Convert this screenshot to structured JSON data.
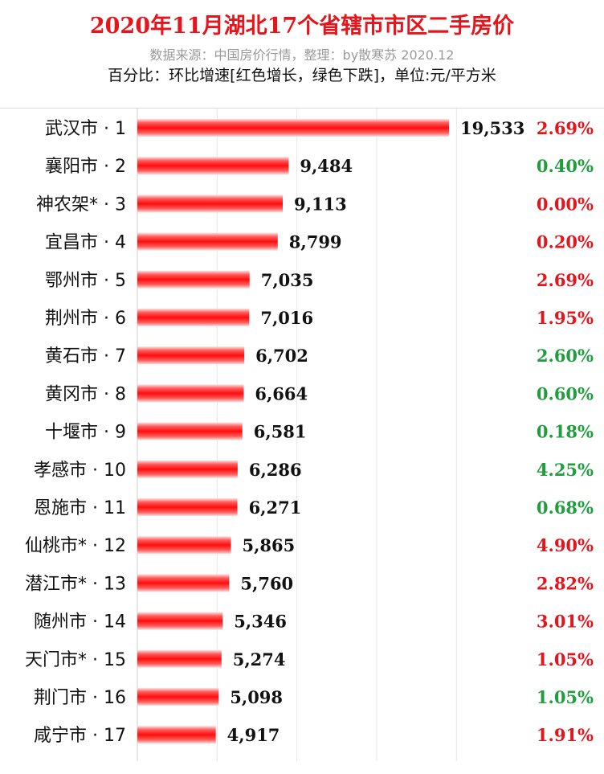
{
  "chart_data": {
    "type": "bar",
    "orientation": "horizontal",
    "title": "2020年11月湖北17个省辖市市区二手房价",
    "subtitle": "数据来源：中国房价行情，整理：by散寒苏 2020.12",
    "note": "百分比：环比增速[红色增长，绿色下跌]，单位:元/平方米",
    "categories": [
      "武汉市 · 1",
      "襄阳市 · 2",
      "神农架* · 3",
      "宜昌市 · 4",
      "鄂州市 · 5",
      "荆州市 · 6",
      "黄石市 · 7",
      "黄冈市 · 8",
      "十堰市 · 9",
      "孝感市 · 10",
      "恩施市 · 11",
      "仙桃市* · 12",
      "潜江市* · 13",
      "随州市 · 14",
      "天门市* · 15",
      "荆门市 · 16",
      "咸宁市 · 17"
    ],
    "values": [
      19533,
      9484,
      9113,
      8799,
      7035,
      7016,
      6702,
      6664,
      6581,
      6286,
      6271,
      5865,
      5760,
      5346,
      5274,
      5098,
      4917
    ],
    "value_labels": [
      "19,533",
      "9,484",
      "9,113",
      "8,799",
      "7,035",
      "7,016",
      "6,702",
      "6,664",
      "6,581",
      "6,286",
      "6,271",
      "5,865",
      "5,760",
      "5,346",
      "5,274",
      "5,098",
      "4,917"
    ],
    "mom_change": [
      "2.69%",
      "0.40%",
      "0.00%",
      "0.20%",
      "2.69%",
      "1.95%",
      "2.60%",
      "0.60%",
      "0.18%",
      "4.25%",
      "0.68%",
      "4.90%",
      "2.82%",
      "3.01%",
      "1.05%",
      "1.05%",
      "1.91%"
    ],
    "mom_direction": [
      "up",
      "down",
      "up",
      "up",
      "up",
      "up",
      "down",
      "down",
      "down",
      "down",
      "down",
      "up",
      "up",
      "up",
      "up",
      "down",
      "up"
    ],
    "xlim": [
      0,
      20000
    ],
    "grid": true,
    "colors": {
      "bar": "#ff1a1a",
      "up": "#e8141b",
      "down": "#1e9e3c",
      "title": "#e8141b"
    }
  }
}
